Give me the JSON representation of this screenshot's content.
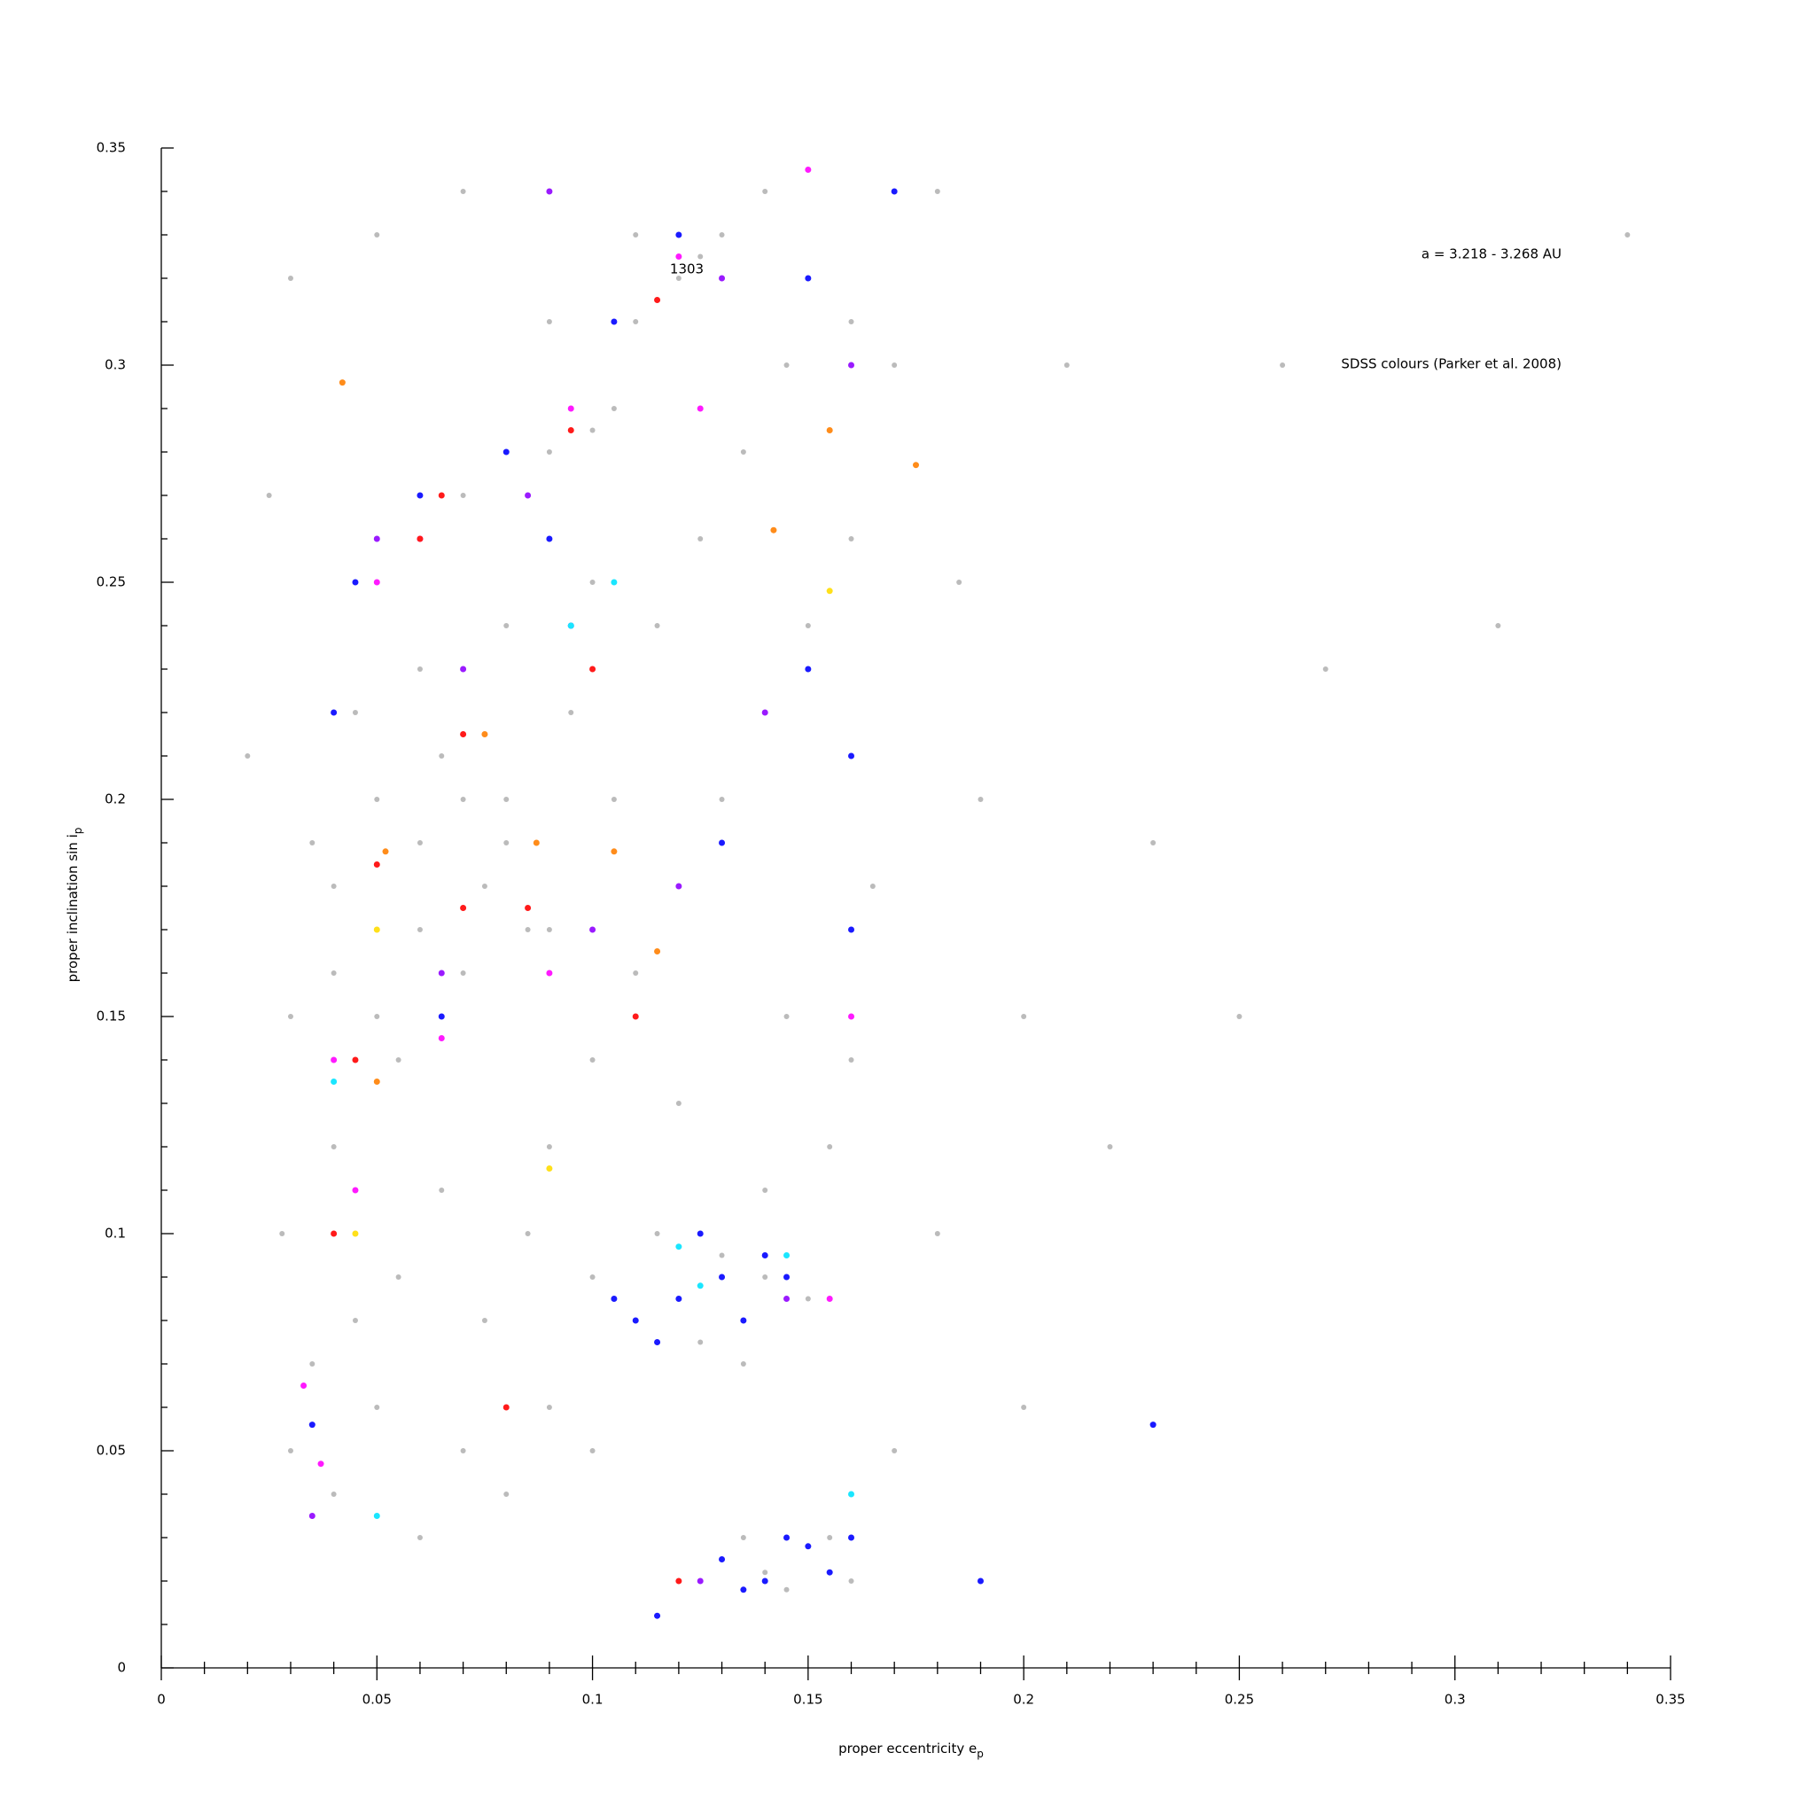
{
  "chart_data": {
    "type": "scatter",
    "annotations": [
      "a = 3.218 - 3.268 AU",
      "SDSS colours (Parker et al. 2008)",
      "1303"
    ],
    "x_label": "proper eccentricity e",
    "x_label_sub": "p",
    "y_label": "proper inclination sin i",
    "y_label_sub": "p",
    "xlim": [
      0,
      0.35
    ],
    "ylim": [
      0,
      0.35
    ],
    "xticks": [
      0,
      0.05,
      0.1,
      0.15,
      0.2,
      0.25,
      0.3,
      0.35
    ],
    "yticks": [
      0,
      0.05,
      0.1,
      0.15,
      0.2,
      0.25,
      0.3,
      0.35
    ],
    "xminorticks": [
      0.01,
      0.02,
      0.03,
      0.04,
      0.06,
      0.07,
      0.08,
      0.09,
      0.11,
      0.12,
      0.13,
      0.14,
      0.16,
      0.17,
      0.18,
      0.19,
      0.21,
      0.22,
      0.23,
      0.24,
      0.26,
      0.27,
      0.28,
      0.29,
      0.31,
      0.32,
      0.33,
      0.34
    ],
    "yminorticks": [
      0.01,
      0.02,
      0.03,
      0.04,
      0.06,
      0.07,
      0.08,
      0.09,
      0.11,
      0.12,
      0.13,
      0.14,
      0.16,
      0.17,
      0.18,
      0.19,
      0.21,
      0.22,
      0.23,
      0.24,
      0.26,
      0.27,
      0.28,
      0.29,
      0.31,
      0.32,
      0.33,
      0.34
    ],
    "series": [
      {
        "color": "#bbbbbb",
        "x": [
          0.04,
          0.05,
          0.06,
          0.07,
          0.08,
          0.045,
          0.055,
          0.065,
          0.075,
          0.085,
          0.035,
          0.03,
          0.04,
          0.05,
          0.06,
          0.07,
          0.08,
          0.09,
          0.1,
          0.105,
          0.11,
          0.115,
          0.12,
          0.125,
          0.13,
          0.14,
          0.1,
          0.11,
          0.12,
          0.13,
          0.14,
          0.125,
          0.115,
          0.135,
          0.15,
          0.12,
          0.13,
          0.14,
          0.15,
          0.16,
          0.135,
          0.145,
          0.155,
          0.09,
          0.1,
          0.11,
          0.12,
          0.13,
          0.14,
          0.15,
          0.16,
          0.17,
          0.18,
          0.03,
          0.04,
          0.05,
          0.06,
          0.07,
          0.08,
          0.09,
          0.1,
          0.03,
          0.05,
          0.07,
          0.09,
          0.11,
          0.16,
          0.02,
          0.025,
          0.028,
          0.19,
          0.2,
          0.21,
          0.22,
          0.23,
          0.25,
          0.26,
          0.27,
          0.31,
          0.34,
          0.2,
          0.18,
          0.17,
          0.185,
          0.165,
          0.155,
          0.145,
          0.095,
          0.085,
          0.075,
          0.065,
          0.055,
          0.045,
          0.035,
          0.105,
          0.115,
          0.125,
          0.135,
          0.145,
          0.06,
          0.08,
          0.1,
          0.12,
          0.14,
          0.16,
          0.07,
          0.05,
          0.06,
          0.08,
          0.09,
          0.04,
          0.05
        ],
        "y": [
          0.18,
          0.17,
          0.19,
          0.16,
          0.2,
          0.22,
          0.14,
          0.21,
          0.18,
          0.17,
          0.19,
          0.15,
          0.12,
          0.25,
          0.26,
          0.27,
          0.28,
          0.28,
          0.285,
          0.29,
          0.31,
          0.315,
          0.32,
          0.325,
          0.33,
          0.34,
          0.09,
          0.08,
          0.085,
          0.095,
          0.09,
          0.075,
          0.1,
          0.07,
          0.085,
          0.02,
          0.025,
          0.022,
          0.028,
          0.02,
          0.03,
          0.018,
          0.03,
          0.12,
          0.14,
          0.16,
          0.18,
          0.2,
          0.22,
          0.24,
          0.26,
          0.3,
          0.34,
          0.05,
          0.04,
          0.06,
          0.03,
          0.05,
          0.04,
          0.06,
          0.05,
          0.32,
          0.33,
          0.34,
          0.31,
          0.33,
          0.31,
          0.21,
          0.27,
          0.1,
          0.2,
          0.15,
          0.3,
          0.12,
          0.19,
          0.15,
          0.3,
          0.23,
          0.24,
          0.33,
          0.06,
          0.1,
          0.05,
          0.25,
          0.18,
          0.12,
          0.15,
          0.22,
          0.1,
          0.08,
          0.11,
          0.09,
          0.08,
          0.07,
          0.2,
          0.24,
          0.26,
          0.28,
          0.3,
          0.23,
          0.24,
          0.25,
          0.13,
          0.11,
          0.14,
          0.2,
          0.2,
          0.17,
          0.19,
          0.17,
          0.16,
          0.15
        ]
      },
      {
        "color": "#1a1aff",
        "x": [
          0.12,
          0.11,
          0.13,
          0.125,
          0.14,
          0.105,
          0.115,
          0.135,
          0.145,
          0.13,
          0.14,
          0.15,
          0.135,
          0.145,
          0.155,
          0.115,
          0.16,
          0.12,
          0.105,
          0.15,
          0.04,
          0.06,
          0.08,
          0.09,
          0.065,
          0.095,
          0.15,
          0.16,
          0.035,
          0.045,
          0.13,
          0.16,
          0.17,
          0.19,
          0.23
        ],
        "y": [
          0.085,
          0.08,
          0.09,
          0.1,
          0.095,
          0.085,
          0.075,
          0.08,
          0.09,
          0.025,
          0.02,
          0.028,
          0.018,
          0.03,
          0.022,
          0.012,
          0.03,
          0.33,
          0.31,
          0.32,
          0.22,
          0.27,
          0.28,
          0.26,
          0.15,
          0.24,
          0.23,
          0.21,
          0.056,
          0.25,
          0.19,
          0.17,
          0.34,
          0.02,
          0.056
        ]
      },
      {
        "color": "#9a1aff",
        "x": [
          0.09,
          0.13,
          0.16,
          0.05,
          0.085,
          0.12,
          0.14,
          0.065,
          0.1,
          0.145,
          0.125,
          0.035,
          0.07
        ],
        "y": [
          0.34,
          0.32,
          0.3,
          0.26,
          0.27,
          0.18,
          0.22,
          0.16,
          0.17,
          0.085,
          0.02,
          0.035,
          0.23
        ]
      },
      {
        "color": "#ff1aff",
        "x": [
          0.15,
          0.12,
          0.06,
          0.05,
          0.095,
          0.125,
          0.065,
          0.04,
          0.16,
          0.09,
          0.033,
          0.037,
          0.155,
          0.045
        ],
        "y": [
          0.345,
          0.325,
          0.26,
          0.25,
          0.29,
          0.29,
          0.145,
          0.14,
          0.15,
          0.16,
          0.065,
          0.047,
          0.085,
          0.11
        ]
      },
      {
        "color": "#ff1a1a",
        "x": [
          0.115,
          0.095,
          0.065,
          0.06,
          0.1,
          0.05,
          0.07,
          0.085,
          0.11,
          0.04,
          0.08,
          0.12,
          0.045,
          0.07
        ],
        "y": [
          0.315,
          0.285,
          0.27,
          0.26,
          0.23,
          0.185,
          0.175,
          0.175,
          0.15,
          0.1,
          0.06,
          0.02,
          0.14,
          0.215
        ]
      },
      {
        "color": "#ff8c1a",
        "x": [
          0.042,
          0.155,
          0.175,
          0.142,
          0.05,
          0.075,
          0.087,
          0.115,
          0.052,
          0.105
        ],
        "y": [
          0.296,
          0.285,
          0.277,
          0.262,
          0.135,
          0.215,
          0.19,
          0.165,
          0.188,
          0.188
        ]
      },
      {
        "color": "#1ae6ff",
        "x": [
          0.04,
          0.12,
          0.145,
          0.16,
          0.05,
          0.105,
          0.095,
          0.125
        ],
        "y": [
          0.135,
          0.097,
          0.095,
          0.04,
          0.035,
          0.25,
          0.24,
          0.088
        ]
      },
      {
        "color": "#ffe01a",
        "x": [
          0.05,
          0.045,
          0.09,
          0.155
        ],
        "y": [
          0.17,
          0.1,
          0.115,
          0.248
        ]
      }
    ]
  }
}
